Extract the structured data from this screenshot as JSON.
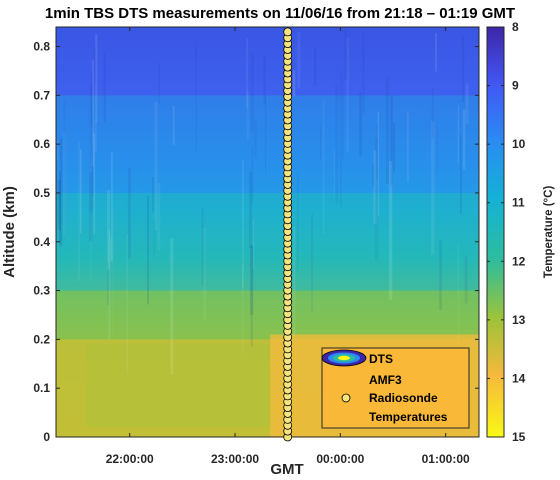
{
  "chart_data": {
    "type": "heatmap",
    "title": "1min TBS DTS measurements on 11/06/16 from 21:18 – 01:19 GMT",
    "xlabel": "GMT",
    "ylabel": "Altitude (km)",
    "x_start": "21:18",
    "x_end": "01:19",
    "xtick_labels": [
      "22:00:00",
      "23:00:00",
      "00:00:00",
      "01:00:00"
    ],
    "ylim": [
      0,
      0.84
    ],
    "yticks": [
      0,
      0.1,
      0.2,
      0.3,
      0.4,
      0.5,
      0.6,
      0.7,
      0.8
    ],
    "colorbar": {
      "label": "Temperature (°C)",
      "range": [
        8,
        15
      ],
      "reversed": true,
      "ticks": [
        8,
        9,
        10,
        11,
        12,
        13,
        14,
        15
      ],
      "colormap": "parula"
    },
    "legend": {
      "placement": "bottom-right",
      "entries": [
        "DTS",
        "AMF3",
        "Radiosonde",
        "Temperatures"
      ]
    },
    "temperature_field": {
      "note_bands_by_altitude_km": [
        {
          "altitude_range": [
            0.0,
            0.2
          ],
          "temperature_c": 13.5
        },
        {
          "altitude_range": [
            0.2,
            0.3
          ],
          "temperature_c": 12.6
        },
        {
          "altitude_range": [
            0.3,
            0.5
          ],
          "temperature_c": 11.3
        },
        {
          "altitude_range": [
            0.5,
            0.7
          ],
          "temperature_c": 10.2
        },
        {
          "altitude_range": [
            0.7,
            0.84
          ],
          "temperature_c": 9.2
        }
      ]
    },
    "radiosonde": {
      "time": "23:30",
      "altitude_range_km": [
        0.0,
        0.83
      ],
      "n_points": 70,
      "marker_color": "#f6e57e"
    }
  }
}
